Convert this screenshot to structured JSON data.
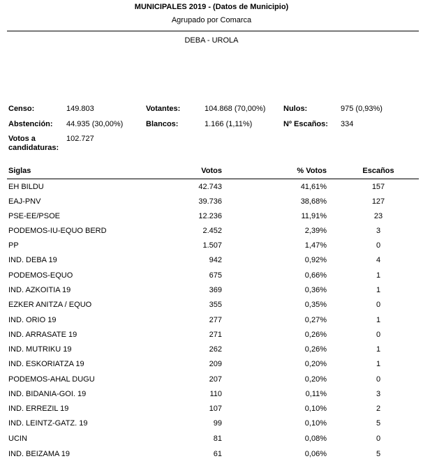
{
  "header": {
    "title": "MUNICIPALES 2019 - (Datos de Municipio)",
    "subtitle": "Agrupado por Comarca",
    "region": "DEBA - UROLA"
  },
  "summary": {
    "censo_label": "Censo:",
    "censo_value": "149.803",
    "abstencion_label": "Abstención:",
    "abstencion_value": "44.935 (30,00%)",
    "votos_cand_label_1": "Votos a",
    "votos_cand_label_2": "candidaturas:",
    "votos_cand_value": "102.727",
    "votantes_label": "Votantes:",
    "votantes_value": "104.868 (70,00%)",
    "blancos_label": "Blancos:",
    "blancos_value": "1.166 (1,11%)",
    "nulos_label": "Nulos:",
    "nulos_value": "975 (0,93%)",
    "escanos_label": "Nº Escaños:",
    "escanos_value": "334"
  },
  "table": {
    "headers": {
      "siglas": "Siglas",
      "votos": "Votos",
      "pct": "% Votos",
      "escanos": "Escaños"
    },
    "rows": [
      {
        "name": "EH BILDU",
        "votes": "42.743",
        "pct": "41,61%",
        "seats": "157"
      },
      {
        "name": "EAJ-PNV",
        "votes": "39.736",
        "pct": "38,68%",
        "seats": "127"
      },
      {
        "name": "PSE-EE/PSOE",
        "votes": "12.236",
        "pct": "11,91%",
        "seats": "23"
      },
      {
        "name": "PODEMOS-IU-EQUO BERD",
        "votes": "2.452",
        "pct": "2,39%",
        "seats": "3"
      },
      {
        "name": "PP",
        "votes": "1.507",
        "pct": "1,47%",
        "seats": "0"
      },
      {
        "name": "IND. DEBA 19",
        "votes": "942",
        "pct": "0,92%",
        "seats": "4"
      },
      {
        "name": "PODEMOS-EQUO",
        "votes": "675",
        "pct": "0,66%",
        "seats": "1"
      },
      {
        "name": "IND. AZKOITIA 19",
        "votes": "369",
        "pct": "0,36%",
        "seats": "1"
      },
      {
        "name": "EZKER ANITZA / EQUO",
        "votes": "355",
        "pct": "0,35%",
        "seats": "0"
      },
      {
        "name": "IND. ORIO 19",
        "votes": "277",
        "pct": "0,27%",
        "seats": "1"
      },
      {
        "name": "IND. ARRASATE 19",
        "votes": "271",
        "pct": "0,26%",
        "seats": "0"
      },
      {
        "name": "IND. MUTRIKU 19",
        "votes": "262",
        "pct": "0,26%",
        "seats": "1"
      },
      {
        "name": "IND. ESKORIATZA 19",
        "votes": "209",
        "pct": "0,20%",
        "seats": "1"
      },
      {
        "name": "PODEMOS-AHAL DUGU",
        "votes": "207",
        "pct": "0,20%",
        "seats": "0"
      },
      {
        "name": "IND. BIDANIA-GOI. 19",
        "votes": "110",
        "pct": "0,11%",
        "seats": "3"
      },
      {
        "name": "IND. ERREZIL 19",
        "votes": "107",
        "pct": "0,10%",
        "seats": "2"
      },
      {
        "name": "IND. LEINTZ-GATZ. 19",
        "votes": "99",
        "pct": "0,10%",
        "seats": "5"
      },
      {
        "name": "UCIN",
        "votes": "81",
        "pct": "0,08%",
        "seats": "0"
      },
      {
        "name": "IND. BEIZAMA 19",
        "votes": "61",
        "pct": "0,06%",
        "seats": "5"
      }
    ]
  }
}
